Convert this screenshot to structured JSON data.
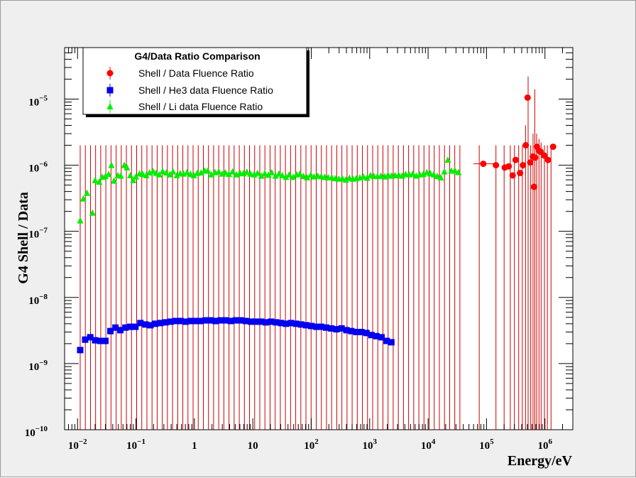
{
  "chart_data": {
    "type": "scatter",
    "title": "",
    "xlabel": "Energy/eV",
    "ylabel": "G4 Shell / Data",
    "x_scale": "log",
    "y_scale": "log",
    "xlim": [
      0.006,
      3000000
    ],
    "ylim": [
      1e-10,
      6e-05
    ],
    "grid": false,
    "legend_position": "top-left",
    "x_ticks": [
      {
        "value": 0.01,
        "base": "10",
        "exp": "−2"
      },
      {
        "value": 0.1,
        "base": "10",
        "exp": "−1"
      },
      {
        "value": 1,
        "base": "1",
        "exp": ""
      },
      {
        "value": 10,
        "base": "10",
        "exp": ""
      },
      {
        "value": 100,
        "base": "10",
        "exp": "2"
      },
      {
        "value": 1000,
        "base": "10",
        "exp": "3"
      },
      {
        "value": 10000,
        "base": "10",
        "exp": "4"
      },
      {
        "value": 100000,
        "base": "10",
        "exp": "5"
      },
      {
        "value": 1000000,
        "base": "10",
        "exp": "6"
      }
    ],
    "y_ticks": [
      {
        "value": 1e-10,
        "base": "10",
        "exp": "−10"
      },
      {
        "value": 1e-09,
        "base": "10",
        "exp": "−9"
      },
      {
        "value": 1e-08,
        "base": "10",
        "exp": "−8"
      },
      {
        "value": 1e-07,
        "base": "10",
        "exp": "−7"
      },
      {
        "value": 1e-06,
        "base": "10",
        "exp": "−6"
      },
      {
        "value": 1e-05,
        "base": "10",
        "exp": "−5"
      }
    ],
    "legend": {
      "title": "G4/Data Ratio Comparison",
      "entries": [
        "Shell / Data Fluence Ratio",
        "Shell / He3 data Fluence Ratio",
        "Shell / Li data Fluence Ratio"
      ]
    },
    "error_bars": {
      "color": "#cc0000",
      "upper_y": 2e-06,
      "lower_y": 1e-10,
      "x_start": 0.0111,
      "x_end": 35000,
      "count": 75,
      "high_energy": {
        "x": [
          75000,
          145000,
          200000,
          255000,
          300000,
          355000,
          410000,
          465000,
          515000,
          570000,
          625000,
          670000,
          720000,
          790000,
          860000,
          980000,
          1100000,
          1270000
        ],
        "upper": [
          2e-06,
          2e-06,
          2e-06,
          2e-06,
          2e-06,
          2e-06,
          2e-06,
          4e-06,
          2.2e-05,
          2e-06,
          3e-06,
          1.4e-05,
          3e-06,
          2.5e-06,
          2.2e-06,
          2e-06,
          2e-06,
          1.9e-06
        ]
      }
    },
    "series": [
      {
        "name": "Shell / Data Fluence Ratio",
        "color": "#ff0000",
        "marker": "circle",
        "x": [
          88000,
          145000,
          205000,
          240000,
          280000,
          315000,
          375000,
          420000,
          470000,
          505000,
          560000,
          620000,
          650000,
          680000,
          730000,
          790000,
          840000,
          970000,
          1130000,
          1380000
        ],
        "y": [
          1.05e-06,
          1e-06,
          9.2e-07,
          9.6e-07,
          7e-07,
          1.2e-06,
          7.6e-07,
          1e-06,
          2e-06,
          1.05e-05,
          1.1e-06,
          1.35e-06,
          4.7e-07,
          1.3e-06,
          1.9e-06,
          1.65e-06,
          1.6e-06,
          1.4e-06,
          1.2e-06,
          1.9e-06
        ]
      },
      {
        "name": "Shell / He3 data Fluence Ratio",
        "color": "#0000ee",
        "marker": "square",
        "x": [
          0.0111,
          0.0135,
          0.0165,
          0.02,
          0.0245,
          0.03,
          0.0365,
          0.0445,
          0.054,
          0.066,
          0.08,
          0.098,
          0.119,
          0.145,
          0.177,
          0.215,
          0.262,
          0.32,
          0.39,
          0.475,
          0.58,
          0.705,
          0.86,
          1.05,
          1.28,
          1.56,
          1.9,
          2.3,
          2.8,
          3.45,
          4.2,
          5.1,
          6.2,
          7.6,
          9.3,
          11.3,
          13.8,
          16.8,
          20.5,
          25,
          30.5,
          37,
          45,
          55,
          67,
          82,
          100,
          122,
          148,
          180,
          220,
          270,
          330,
          400,
          485,
          590,
          720,
          880,
          1070,
          1300,
          1600,
          1950,
          2350
        ],
        "y": [
          1.6e-09,
          2.3e-09,
          2.5e-09,
          2.25e-09,
          2.2e-09,
          2.2e-09,
          3.1e-09,
          3.5e-09,
          3.2e-09,
          3.5e-09,
          3.6e-09,
          3.6e-09,
          4.1e-09,
          3.9e-09,
          3.8e-09,
          4e-09,
          4.1e-09,
          4.2e-09,
          4.3e-09,
          4.4e-09,
          4.4e-09,
          4.3e-09,
          4.4e-09,
          4.4e-09,
          4.4e-09,
          4.5e-09,
          4.5e-09,
          4.4e-09,
          4.5e-09,
          4.5e-09,
          4.4e-09,
          4.5e-09,
          4.5e-09,
          4.4e-09,
          4.3e-09,
          4.3e-09,
          4.3e-09,
          4.2e-09,
          4.3e-09,
          4.2e-09,
          4.1e-09,
          4e-09,
          4.1e-09,
          4e-09,
          3.9e-09,
          3.8e-09,
          3.7e-09,
          3.6e-09,
          3.6e-09,
          3.5e-09,
          3.4e-09,
          3.3e-09,
          3.4e-09,
          3.2e-09,
          3.1e-09,
          3e-09,
          3e-09,
          2.9e-09,
          2.7e-09,
          2.6e-09,
          2.5e-09,
          2.2e-09,
          2.1e-09
        ]
      },
      {
        "name": "Shell / Li data Fluence Ratio",
        "color": "#00ee00",
        "marker": "triangle",
        "x": [
          0.0111,
          0.0125,
          0.0145,
          0.018,
          0.02,
          0.0235,
          0.0265,
          0.03,
          0.034,
          0.038,
          0.042,
          0.049,
          0.055,
          0.063,
          0.07,
          0.08,
          0.09,
          0.1,
          0.115,
          0.13,
          0.15,
          0.17,
          0.195,
          0.22,
          0.25,
          0.285,
          0.33,
          0.38,
          0.43,
          0.5,
          0.57,
          0.65,
          0.75,
          0.86,
          0.98,
          1.12,
          1.3,
          1.5,
          1.7,
          1.95,
          2.25,
          2.6,
          3.0,
          3.4,
          3.9,
          4.5,
          5.2,
          6.0,
          6.9,
          7.9,
          9.1,
          10.5,
          12,
          14,
          16,
          18.5,
          21,
          24.5,
          28,
          32,
          37,
          42,
          49,
          56,
          64,
          74,
          85,
          98,
          112,
          129,
          148,
          170,
          195,
          225,
          258,
          296,
          340,
          390,
          450,
          515,
          590,
          680,
          780,
          900,
          1030,
          1180,
          1360,
          1560,
          1800,
          2060,
          2370,
          2720,
          3130,
          3600,
          4130,
          4750,
          5450,
          6270,
          7200,
          8270,
          9500,
          10900,
          12500,
          14400,
          16500,
          19000,
          21800,
          25000,
          28700,
          33000
        ],
        "y": [
          1.45e-07,
          3.1e-07,
          3.8e-07,
          1.9e-07,
          5.9e-07,
          5.6e-07,
          6.6e-07,
          6.8e-07,
          7.3e-07,
          1e-06,
          5.8e-07,
          7e-07,
          6.9e-07,
          1e-06,
          9.2e-07,
          7e-07,
          5.9e-07,
          6.7e-07,
          7.5e-07,
          7.3e-07,
          7e-07,
          7.7e-07,
          8.1e-07,
          7.6e-07,
          7.2e-07,
          8.1e-07,
          7.7e-07,
          7.2e-07,
          8e-07,
          7e-07,
          7.5e-07,
          7.4e-07,
          7.8e-07,
          7.3e-07,
          7e-07,
          7.6e-07,
          7.7e-07,
          8.3e-07,
          8.2e-07,
          7.2e-07,
          7.8e-07,
          8e-07,
          7.4e-07,
          7.7e-07,
          7.3e-07,
          8e-07,
          7.2e-07,
          7.6e-07,
          7.5e-07,
          7.9e-07,
          7.4e-07,
          7.2e-07,
          7.6e-07,
          6.9e-07,
          7.5e-07,
          7.1e-07,
          7.8e-07,
          6.9e-07,
          7.4e-07,
          7e-07,
          6.6e-07,
          7.2e-07,
          6.6e-07,
          7.2e-07,
          7.4e-07,
          6.8e-07,
          6.5e-07,
          7.1e-07,
          6.7e-07,
          6.9e-07,
          6.8e-07,
          6.6e-07,
          6.5e-07,
          6.5e-07,
          6.3e-07,
          6.2e-07,
          6.3e-07,
          6e-07,
          6.4e-07,
          6.2e-07,
          6.3e-07,
          6.5e-07,
          6.7e-07,
          6.4e-07,
          7e-07,
          6.8e-07,
          6.8e-07,
          6.9e-07,
          6.7e-07,
          7.1e-07,
          6.9e-07,
          7e-07,
          7.1e-07,
          6.9e-07,
          7.3e-07,
          7.2e-07,
          7.4e-07,
          6.9e-07,
          7.2e-07,
          7.3e-07,
          7.8e-07,
          7.5e-07,
          7.2e-07,
          6.8e-07,
          6.5e-07,
          8e-07,
          1.2e-06,
          8.2e-07,
          8.3e-07,
          7.8e-07
        ]
      }
    ]
  }
}
